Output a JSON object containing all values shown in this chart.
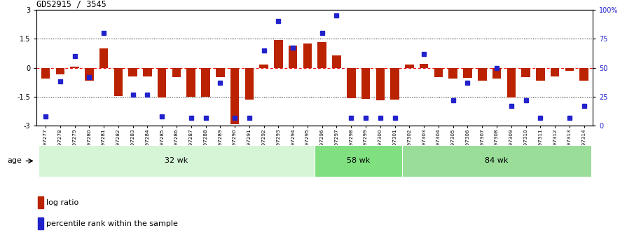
{
  "title": "GDS2915 / 3545",
  "samples": [
    "GSM97277",
    "GSM97278",
    "GSM97279",
    "GSM97280",
    "GSM97281",
    "GSM97282",
    "GSM97283",
    "GSM97284",
    "GSM97285",
    "GSM97286",
    "GSM97287",
    "GSM97288",
    "GSM97289",
    "GSM97290",
    "GSM97291",
    "GSM97292",
    "GSM97293",
    "GSM97294",
    "GSM97295",
    "GSM97296",
    "GSM97297",
    "GSM97298",
    "GSM97299",
    "GSM97300",
    "GSM97301",
    "GSM97302",
    "GSM97303",
    "GSM97304",
    "GSM97305",
    "GSM97306",
    "GSM97307",
    "GSM97308",
    "GSM97309",
    "GSM97310",
    "GSM97311",
    "GSM97312",
    "GSM97313",
    "GSM97314"
  ],
  "log_ratio": [
    -0.55,
    -0.35,
    0.07,
    -0.65,
    1.0,
    -1.45,
    -0.45,
    -0.45,
    -1.55,
    -0.5,
    -1.5,
    -1.5,
    -0.5,
    -2.9,
    -1.65,
    0.18,
    1.42,
    1.15,
    1.25,
    1.32,
    0.65,
    -1.57,
    -1.62,
    -1.67,
    -1.65,
    0.18,
    0.2,
    -0.5,
    -0.55,
    -0.52,
    -0.65,
    -0.55,
    -1.55,
    -0.5,
    -0.65,
    -0.45,
    -0.15,
    -0.65
  ],
  "percentile": [
    8,
    38,
    60,
    42,
    80,
    null,
    27,
    27,
    8,
    null,
    7,
    7,
    37,
    7,
    7,
    65,
    90,
    67,
    null,
    80,
    95,
    7,
    7,
    7,
    7,
    null,
    62,
    null,
    22,
    37,
    null,
    50,
    17,
    22,
    7,
    null,
    7,
    17
  ],
  "group_labels": [
    "32 wk",
    "58 wk",
    "84 wk"
  ],
  "group_ends": [
    19,
    25,
    38
  ],
  "group_colors": [
    "#d6f5d6",
    "#80e080",
    "#99dd99"
  ],
  "bar_color": "#bb2200",
  "dot_color": "#2222cc",
  "ylim_left": [
    -3,
    3
  ],
  "ylim_right": [
    0,
    100
  ],
  "yticks_left": [
    -3,
    -1.5,
    0,
    1.5,
    3
  ],
  "yticks_right": [
    0,
    25,
    50,
    75,
    100
  ],
  "yticklabels_right": [
    "0",
    "25",
    "50",
    "75",
    "100%"
  ],
  "dotted_hlines": [
    -1.5,
    1.5
  ],
  "age_label": "age"
}
